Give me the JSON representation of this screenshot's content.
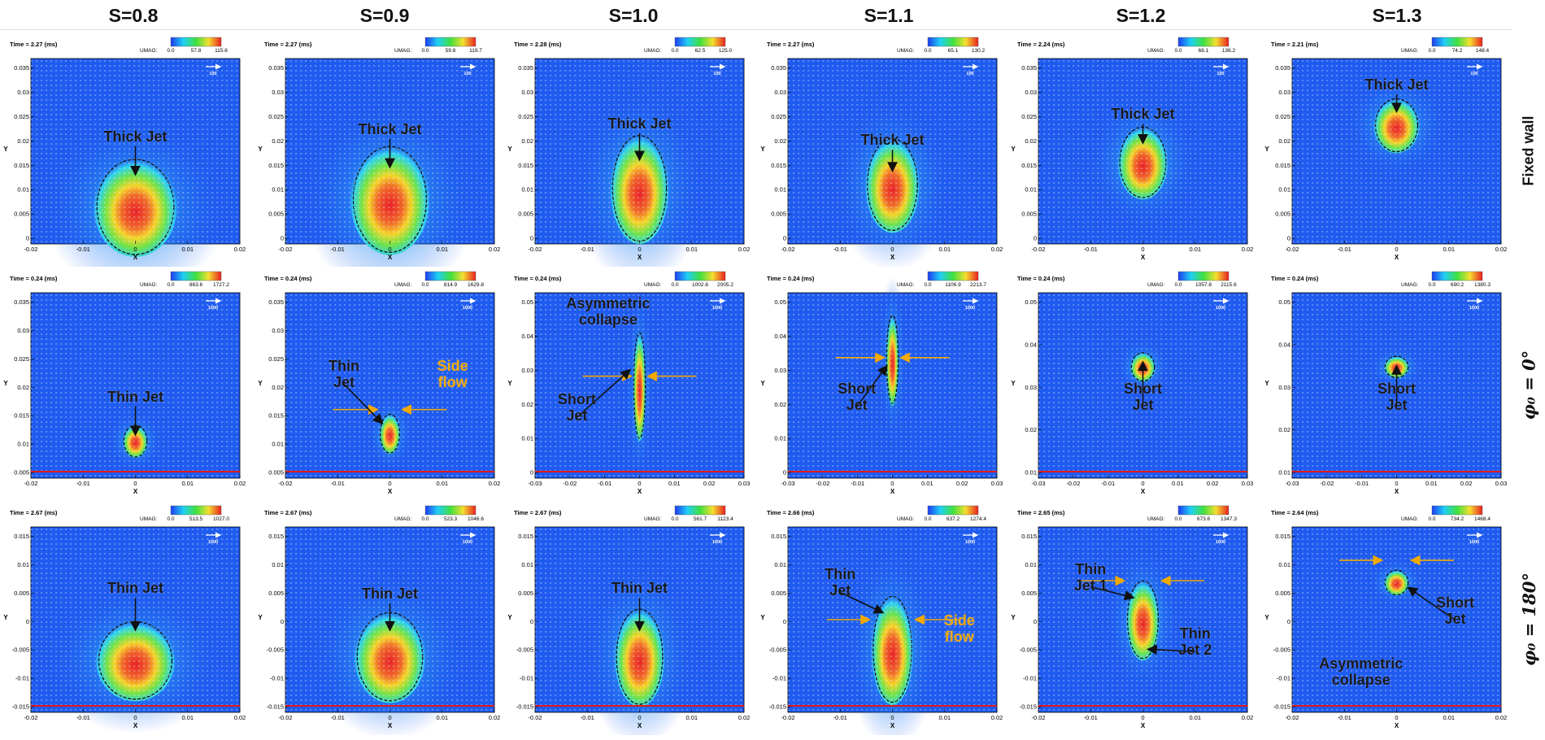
{
  "columns": [
    "S=0.8",
    "S=0.9",
    "S=1.0",
    "S=1.1",
    "S=1.2",
    "S=1.3"
  ],
  "rows": [
    {
      "label": "Fixed wall",
      "panels": [
        {
          "time": "Time = 2.27 (ms)",
          "colorbar": {
            "label": "UMAG:",
            "ticks": [
              "0.0",
              "57.8",
              "115.6"
            ]
          },
          "scale": "100",
          "xlabel": "X",
          "ylabel": "Y",
          "xticks": [
            "-0.02",
            "-0.01",
            "0",
            "0.01",
            "0.02"
          ],
          "yticks": [
            "0",
            "0.005",
            "0.01",
            "0.015",
            "0.02",
            "0.025",
            "0.03",
            "0.035"
          ],
          "annotations": [
            {
              "text": "Thick Jet",
              "color": "#1a1a1a"
            }
          ]
        },
        {
          "time": "Time = 2.27 (ms)",
          "colorbar": {
            "label": "UMAG:",
            "ticks": [
              "0.0",
              "59.8",
              "119.7"
            ]
          },
          "scale": "100",
          "xlabel": "X",
          "ylabel": "Y",
          "xticks": [
            "-0.02",
            "-0.01",
            "0",
            "0.01",
            "0.02"
          ],
          "yticks": [
            "0",
            "0.005",
            "0.01",
            "0.015",
            "0.02",
            "0.025",
            "0.03",
            "0.035"
          ],
          "annotations": [
            {
              "text": "Thick Jet",
              "color": "#1a1a1a"
            }
          ]
        },
        {
          "time": "Time = 2.28 (ms)",
          "colorbar": {
            "label": "UMAG:",
            "ticks": [
              "0.0",
              "62.5",
              "125.0"
            ]
          },
          "scale": "100",
          "xlabel": "X",
          "ylabel": "Y",
          "xticks": [
            "-0.02",
            "-0.01",
            "0",
            "0.01",
            "0.02"
          ],
          "yticks": [
            "0",
            "0.005",
            "0.01",
            "0.015",
            "0.02",
            "0.025",
            "0.03",
            "0.035"
          ],
          "annotations": [
            {
              "text": "Thick Jet",
              "color": "#1a1a1a"
            }
          ]
        },
        {
          "time": "Time = 2.27 (ms)",
          "colorbar": {
            "label": "UMAG:",
            "ticks": [
              "0.0",
              "65.1",
              "130.2"
            ]
          },
          "scale": "100",
          "xlabel": "X",
          "ylabel": "Y",
          "xticks": [
            "-0.02",
            "-0.01",
            "0",
            "0.01",
            "0.02"
          ],
          "yticks": [
            "0",
            "0.005",
            "0.01",
            "0.015",
            "0.02",
            "0.025",
            "0.03",
            "0.035"
          ],
          "annotations": [
            {
              "text": "Thick Jet",
              "color": "#1a1a1a"
            }
          ]
        },
        {
          "time": "Time = 2.24 (ms)",
          "colorbar": {
            "label": "UMAG:",
            "ticks": [
              "0.0",
              "68.1",
              "136.2"
            ]
          },
          "scale": "100",
          "xlabel": "X",
          "ylabel": "Y",
          "xticks": [
            "-0.02",
            "-0.01",
            "0",
            "0.01",
            "0.02"
          ],
          "yticks": [
            "0",
            "0.005",
            "0.01",
            "0.015",
            "0.02",
            "0.025",
            "0.03",
            "0.035"
          ],
          "annotations": [
            {
              "text": "Thick Jet",
              "color": "#1a1a1a"
            }
          ]
        },
        {
          "time": "Time = 2.21 (ms)",
          "colorbar": {
            "label": "UMAG:",
            "ticks": [
              "0.0",
              "74.2",
              "148.4"
            ]
          },
          "scale": "100",
          "xlabel": "X",
          "ylabel": "Y",
          "xticks": [
            "-0.02",
            "-0.01",
            "0",
            "0.01",
            "0.02"
          ],
          "yticks": [
            "0",
            "0.005",
            "0.01",
            "0.015",
            "0.02",
            "0.025",
            "0.03",
            "0.035"
          ],
          "annotations": [
            {
              "text": "Thick Jet",
              "color": "#1a1a1a"
            }
          ]
        }
      ]
    },
    {
      "label": "φ₀ = 0°",
      "panels": [
        {
          "time": "Time = 0.24 (ms)",
          "colorbar": {
            "label": "UMAG:",
            "ticks": [
              "0.0",
              "863.6",
              "1727.2"
            ]
          },
          "scale": "1000",
          "xlabel": "X",
          "ylabel": "Y",
          "xticks": [
            "-0.02",
            "-0.01",
            "0",
            "0.01",
            "0.02"
          ],
          "yticks": [
            "0.005",
            "0.01",
            "0.015",
            "0.02",
            "0.025",
            "0.03",
            "0.035"
          ],
          "annotations": [
            {
              "text": "Thin Jet",
              "color": "#1a1a1a"
            }
          ]
        },
        {
          "time": "Time = 0.24 (ms)",
          "colorbar": {
            "label": "UMAG:",
            "ticks": [
              "0.0",
              "814.9",
              "1629.8"
            ]
          },
          "scale": "1000",
          "xlabel": "X",
          "ylabel": "Y",
          "xticks": [
            "-0.02",
            "-0.01",
            "0",
            "0.01",
            "0.02"
          ],
          "yticks": [
            "0.005",
            "0.01",
            "0.015",
            "0.02",
            "0.025",
            "0.03",
            "0.035"
          ],
          "annotations": [
            {
              "text": "Thin Jet",
              "color": "#1a1a1a"
            },
            {
              "text": "Side flow",
              "color": "#f2a900"
            }
          ]
        },
        {
          "time": "Time = 0.24 (ms)",
          "colorbar": {
            "label": "UMAG:",
            "ticks": [
              "0.0",
              "1002.6",
              "2005.2"
            ]
          },
          "scale": "1000",
          "xlabel": "X",
          "ylabel": "Y",
          "xticks": [
            "-0.03",
            "-0.02",
            "-0.01",
            "0",
            "0.01",
            "0.02",
            "0.03"
          ],
          "yticks": [
            "0",
            "0.01",
            "0.02",
            "0.03",
            "0.04",
            "0.05"
          ],
          "annotations": [
            {
              "text": "Asymmetric collapse",
              "color": "#1a1a1a"
            },
            {
              "text": "Short Jet",
              "color": "#1a1a1a"
            }
          ]
        },
        {
          "time": "Time = 0.24 (ms)",
          "colorbar": {
            "label": "UMAG:",
            "ticks": [
              "0.0",
              "1106.9",
              "2213.7"
            ]
          },
          "scale": "1000",
          "xlabel": "X",
          "ylabel": "Y",
          "xticks": [
            "-0.03",
            "-0.02",
            "-0.01",
            "0",
            "0.01",
            "0.02",
            "0.03"
          ],
          "yticks": [
            "0",
            "0.01",
            "0.02",
            "0.03",
            "0.04",
            "0.05"
          ],
          "annotations": [
            {
              "text": "Short Jet",
              "color": "#1a1a1a"
            }
          ]
        },
        {
          "time": "Time = 0.24 (ms)",
          "colorbar": {
            "label": "UMAG:",
            "ticks": [
              "0.0",
              "1057.8",
              "2115.6"
            ]
          },
          "scale": "1000",
          "xlabel": "X",
          "ylabel": "Y",
          "xticks": [
            "-0.03",
            "-0.02",
            "-0.01",
            "0",
            "0.01",
            "0.02",
            "0.03"
          ],
          "yticks": [
            "0.01",
            "0.02",
            "0.03",
            "0.04",
            "0.05"
          ],
          "annotations": [
            {
              "text": "Short Jet",
              "color": "#1a1a1a"
            }
          ]
        },
        {
          "time": "Time = 0.24 (ms)",
          "colorbar": {
            "label": "UMAG:",
            "ticks": [
              "0.0",
              "690.2",
              "1380.3"
            ]
          },
          "scale": "1000",
          "xlabel": "X",
          "ylabel": "Y",
          "xticks": [
            "-0.03",
            "-0.02",
            "-0.01",
            "0",
            "0.01",
            "0.02",
            "0.03"
          ],
          "yticks": [
            "0.01",
            "0.02",
            "0.03",
            "0.04",
            "0.05"
          ],
          "annotations": [
            {
              "text": "Short Jet",
              "color": "#1a1a1a"
            }
          ]
        }
      ]
    },
    {
      "label": "φ₀ = 180°",
      "panels": [
        {
          "time": "Time = 2.67 (ms)",
          "colorbar": {
            "label": "UMAG:",
            "ticks": [
              "0.0",
              "513.5",
              "1027.0"
            ]
          },
          "scale": "1000",
          "xlabel": "X",
          "ylabel": "Y",
          "xticks": [
            "-0.02",
            "-0.01",
            "0",
            "0.01",
            "0.02"
          ],
          "yticks": [
            "-0.015",
            "-0.01",
            "-0.005",
            "0",
            "0.005",
            "0.01",
            "0.015"
          ],
          "annotations": [
            {
              "text": "Thin Jet",
              "color": "#1a1a1a"
            }
          ]
        },
        {
          "time": "Time = 2.67 (ms)",
          "colorbar": {
            "label": "UMAG:",
            "ticks": [
              "0.0",
              "523.3",
              "1046.6"
            ]
          },
          "scale": "1000",
          "xlabel": "X",
          "ylabel": "Y",
          "xticks": [
            "-0.02",
            "-0.01",
            "0",
            "0.01",
            "0.02"
          ],
          "yticks": [
            "-0.015",
            "-0.01",
            "-0.005",
            "0",
            "0.005",
            "0.01",
            "0.015"
          ],
          "annotations": [
            {
              "text": "Thin Jet",
              "color": "#1a1a1a"
            }
          ]
        },
        {
          "time": "Time = 2.67 (ms)",
          "colorbar": {
            "label": "UMAG:",
            "ticks": [
              "0.0",
              "561.7",
              "1123.4"
            ]
          },
          "scale": "1000",
          "xlabel": "X",
          "ylabel": "Y",
          "xticks": [
            "-0.02",
            "-0.01",
            "0",
            "0.01",
            "0.02"
          ],
          "yticks": [
            "-0.015",
            "-0.01",
            "-0.005",
            "0",
            "0.005",
            "0.01",
            "0.015"
          ],
          "annotations": [
            {
              "text": "Thin Jet",
              "color": "#1a1a1a"
            }
          ]
        },
        {
          "time": "Time = 2.66 (ms)",
          "colorbar": {
            "label": "UMAG:",
            "ticks": [
              "0.0",
              "637.2",
              "1274.4"
            ]
          },
          "scale": "1000",
          "xlabel": "X",
          "ylabel": "Y",
          "xticks": [
            "-0.02",
            "-0.01",
            "0",
            "0.01",
            "0.02"
          ],
          "yticks": [
            "-0.015",
            "-0.01",
            "-0.005",
            "0",
            "0.005",
            "0.01",
            "0.015"
          ],
          "annotations": [
            {
              "text": "Thin Jet",
              "color": "#1a1a1a"
            },
            {
              "text": "Side flow",
              "color": "#f2a900"
            }
          ]
        },
        {
          "time": "Time = 2.65 (ms)",
          "colorbar": {
            "label": "UMAG:",
            "ticks": [
              "0.0",
              "673.6",
              "1347.3"
            ]
          },
          "scale": "1000",
          "xlabel": "X",
          "ylabel": "Y",
          "xticks": [
            "-0.02",
            "-0.01",
            "0",
            "0.01",
            "0.02"
          ],
          "yticks": [
            "-0.015",
            "-0.01",
            "-0.005",
            "0",
            "0.005",
            "0.01",
            "0.015"
          ],
          "annotations": [
            {
              "text": "Thin Jet 1",
              "color": "#1a1a1a"
            },
            {
              "text": "Thin Jet 2",
              "color": "#1a1a1a"
            }
          ]
        },
        {
          "time": "Time = 2.64 (ms)",
          "colorbar": {
            "label": "UMAG:",
            "ticks": [
              "0.0",
              "734.2",
              "1468.4"
            ]
          },
          "scale": "1000",
          "xlabel": "X",
          "ylabel": "Y",
          "xticks": [
            "-0.02",
            "-0.01",
            "0",
            "0.01",
            "0.02"
          ],
          "yticks": [
            "-0.015",
            "-0.01",
            "-0.005",
            "0",
            "0.005",
            "0.01",
            "0.015"
          ],
          "annotations": [
            {
              "text": "Short Jet",
              "color": "#1a1a1a"
            },
            {
              "text": "Asymmetric collapse",
              "color": "#1a1a1a"
            }
          ]
        }
      ]
    }
  ]
}
